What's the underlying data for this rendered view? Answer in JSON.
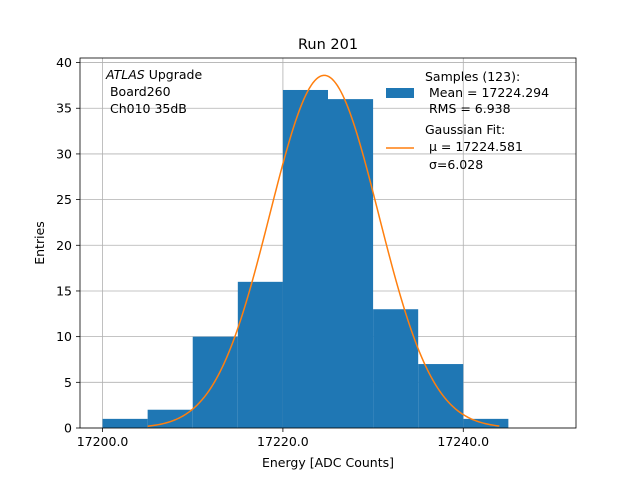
{
  "chart_data": {
    "type": "bar",
    "title": "Run 201",
    "xlabel": "Energy [ADC Counts]",
    "ylabel": "Entries",
    "xlim": [
      17197.5,
      17252.5
    ],
    "ylim": [
      0,
      40.5
    ],
    "grid": true,
    "x_ticks": [
      17200,
      17220,
      17240
    ],
    "x_tick_labels": [
      "17200.0",
      "17220.0",
      "17240.0"
    ],
    "y_ticks": [
      0,
      5,
      10,
      15,
      20,
      25,
      30,
      35,
      40
    ],
    "y_tick_labels": [
      "0",
      "5",
      "10",
      "15",
      "20",
      "25",
      "30",
      "35",
      "40"
    ],
    "histogram": {
      "name": "Samples",
      "color": "#1f77b4",
      "bins": [
        {
          "x0": 17200,
          "x1": 17205,
          "count": 1
        },
        {
          "x0": 17205,
          "x1": 17210,
          "count": 2
        },
        {
          "x0": 17210,
          "x1": 17215,
          "count": 10
        },
        {
          "x0": 17215,
          "x1": 17220,
          "count": 16
        },
        {
          "x0": 17220,
          "x1": 17225,
          "count": 37
        },
        {
          "x0": 17225,
          "x1": 17230,
          "count": 36
        },
        {
          "x0": 17230,
          "x1": 17235,
          "count": 13
        },
        {
          "x0": 17235,
          "x1": 17240,
          "count": 7
        },
        {
          "x0": 17240,
          "x1": 17245,
          "count": 1
        }
      ]
    },
    "fit": {
      "name": "Gaussian Fit",
      "color": "#ff7f0e",
      "mu": 17224.581,
      "sigma": 6.028,
      "amplitude": 38.6,
      "x_range": [
        17205,
        17244
      ]
    },
    "annotation": {
      "line1_italic": "ATLAS",
      "line1_rest": " Upgrade",
      "line2": " Board260",
      "line3": " Ch010 35dB"
    },
    "legend": {
      "placement": "top-right",
      "entries": [
        {
          "lines": [
            "Samples (123):",
            " Mean = 17224.294",
            " RMS = 6.938"
          ]
        },
        {
          "lines": [
            "Gaussian Fit:",
            " μ = 17224.581",
            " σ=6.028"
          ]
        }
      ]
    }
  }
}
